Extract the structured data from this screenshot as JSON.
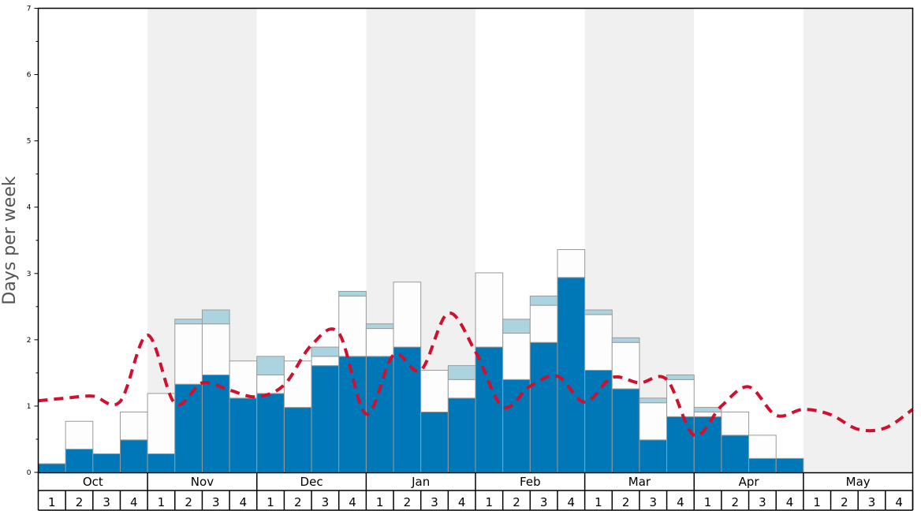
{
  "chart_data": {
    "type": "bar",
    "ylabel": "Days per week",
    "ylim": [
      0,
      7
    ],
    "yticks": [
      0,
      1,
      2,
      3,
      4,
      5,
      6,
      7
    ],
    "months": [
      "Oct",
      "Nov",
      "Dec",
      "Jan",
      "Feb",
      "Mar",
      "Apr",
      "May"
    ],
    "week_labels": [
      "1",
      "2",
      "3",
      "4"
    ],
    "categories": [
      "Oct 1",
      "Oct 2",
      "Oct 3",
      "Oct 4",
      "Nov 1",
      "Nov 2",
      "Nov 3",
      "Nov 4",
      "Dec 1",
      "Dec 2",
      "Dec 3",
      "Dec 4",
      "Jan 1",
      "Jan 2",
      "Jan 3",
      "Jan 4",
      "Feb 1",
      "Feb 2",
      "Feb 3",
      "Feb 4",
      "Mar 1",
      "Mar 2",
      "Mar 3",
      "Mar 4",
      "Apr 1",
      "Apr 2",
      "Apr 3",
      "Apr 4",
      "May 1",
      "May 2",
      "May 3",
      "May 4"
    ],
    "series": [
      {
        "color": "#0077b6",
        "values": [
          0.13,
          0.35,
          0.28,
          0.49,
          0.28,
          1.33,
          1.47,
          1.12,
          1.19,
          0.98,
          1.61,
          1.75,
          1.75,
          1.89,
          0.91,
          1.12,
          1.89,
          1.4,
          1.96,
          2.94,
          1.54,
          1.26,
          0.49,
          0.84,
          0.84,
          0.56,
          0.21,
          0.21,
          0,
          0,
          0,
          0
        ]
      },
      {
        "color": "#fdfdfd",
        "values": [
          0,
          0.42,
          0,
          0.42,
          0.91,
          0.91,
          0.77,
          0.56,
          0.28,
          0.7,
          0.14,
          0.91,
          0.42,
          0.98,
          0.63,
          0.28,
          1.12,
          0.7,
          0.56,
          0.42,
          0.84,
          0.7,
          0.56,
          0.56,
          0.07,
          0.35,
          0.35,
          0,
          0,
          0,
          0,
          0
        ]
      },
      {
        "color": "#acd4e0",
        "values": [
          0,
          0,
          0,
          0,
          0,
          0.07,
          0.21,
          0,
          0.28,
          0,
          0.14,
          0.07,
          0.07,
          0,
          0,
          0.21,
          0,
          0.21,
          0.14,
          0,
          0.07,
          0.07,
          0.07,
          0.07,
          0.07,
          0,
          0,
          0,
          0,
          0,
          0,
          0
        ]
      }
    ],
    "line": {
      "color": "#d0102e",
      "style": "dashed",
      "values": [
        1.08,
        1.12,
        1.15,
        1.07,
        2.07,
        1.04,
        1.35,
        1.24,
        1.14,
        1.32,
        1.92,
        2.1,
        0.88,
        1.77,
        1.54,
        2.4,
        1.82,
        0.99,
        1.3,
        1.45,
        1.06,
        1.43,
        1.35,
        1.4,
        0.56,
        1.0,
        1.29,
        0.86,
        0.95,
        0.87,
        0.65,
        0.67
      ],
      "end_value": 0.95
    },
    "shaded_months": [
      "Nov",
      "Jan",
      "Mar",
      "May"
    ],
    "grid": false
  }
}
